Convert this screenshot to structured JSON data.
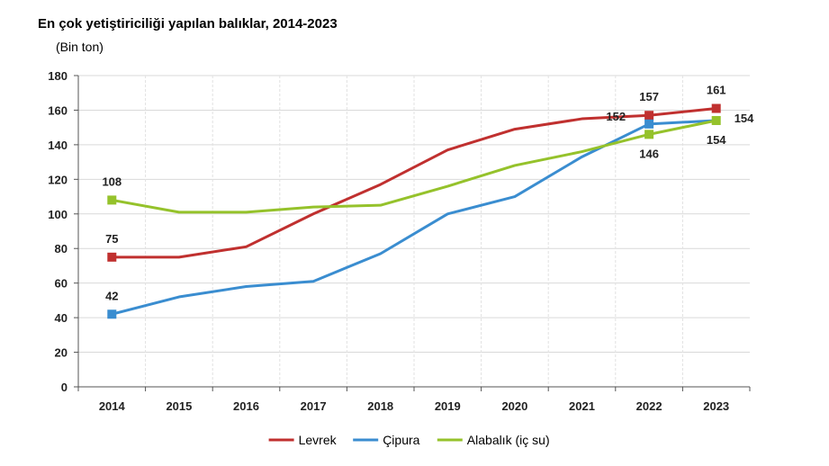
{
  "chart_data": {
    "type": "line",
    "title": "En çok yetiştiriciliği yapılan balıklar, 2014-2023",
    "unit": "(Bin ton)",
    "categories": [
      "2014",
      "2015",
      "2016",
      "2017",
      "2018",
      "2019",
      "2020",
      "2021",
      "2022",
      "2023"
    ],
    "ylim": [
      0,
      180
    ],
    "yticks": [
      0,
      20,
      40,
      60,
      80,
      100,
      120,
      140,
      160,
      180
    ],
    "grid": true,
    "legend": "bottom",
    "series": [
      {
        "name": "Levrek",
        "color": "#C0302F",
        "values": [
          75,
          75,
          81,
          100,
          117,
          137,
          149,
          155,
          157,
          161
        ],
        "labels": [
          {
            "index": 0,
            "text": "75",
            "pos": "above"
          },
          {
            "index": 8,
            "text": "157",
            "pos": "above"
          },
          {
            "index": 9,
            "text": "161",
            "pos": "above"
          }
        ]
      },
      {
        "name": "Çipura",
        "color": "#3A8DD0",
        "values": [
          42,
          52,
          58,
          61,
          77,
          100,
          110,
          133,
          152,
          154
        ],
        "labels": [
          {
            "index": 0,
            "text": "42",
            "pos": "above"
          },
          {
            "index": 8,
            "text": "152",
            "pos": "left"
          }
        ]
      },
      {
        "name": "Alabalık (iç su)",
        "color": "#95C22B",
        "values": [
          108,
          101,
          101,
          104,
          105,
          116,
          128,
          136,
          146,
          154
        ],
        "labels": [
          {
            "index": 0,
            "text": "108",
            "pos": "above"
          },
          {
            "index": 8,
            "text": "146",
            "pos": "below"
          },
          {
            "index": 9,
            "text": "154",
            "pos": "below"
          },
          {
            "index": 9,
            "text": "154",
            "pos": "right"
          }
        ]
      }
    ]
  }
}
